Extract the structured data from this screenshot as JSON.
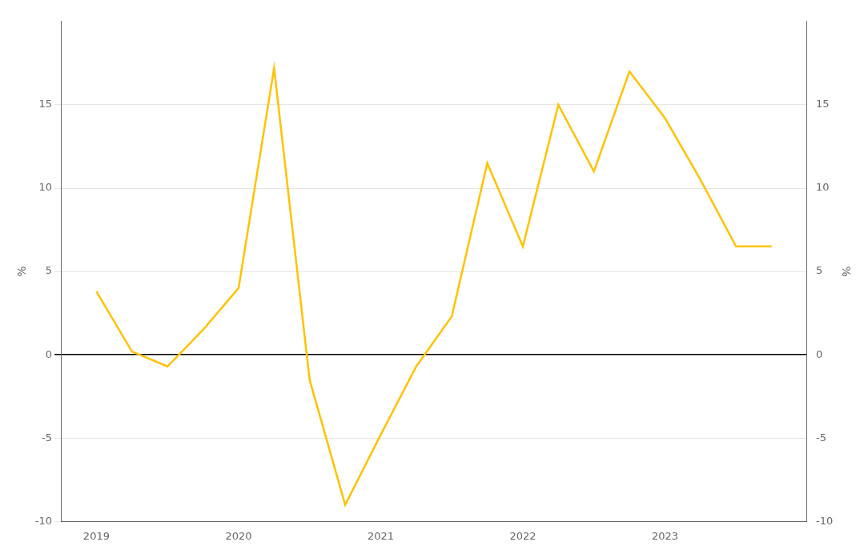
{
  "chart_data": {
    "type": "line",
    "x": [
      2019.0,
      2019.25,
      2019.5,
      2019.75,
      2020.0,
      2020.25,
      2020.5,
      2020.75,
      2021.0,
      2021.25,
      2021.5,
      2021.75,
      2022.0,
      2022.25,
      2022.5,
      2022.75,
      2023.0,
      2023.25,
      2023.5,
      2023.75
    ],
    "values": [
      3.8,
      0.2,
      -0.7,
      1.5,
      4.0,
      17.2,
      -1.5,
      -9.0,
      -4.8,
      -0.7,
      2.3,
      11.5,
      6.5,
      15.0,
      11.0,
      17.0,
      14.2,
      10.5,
      6.5,
      6.5
    ],
    "color": "#FFC200",
    "xlim": [
      2018.75,
      2024.0
    ],
    "xticks": [
      2019,
      2020,
      2021,
      2022,
      2023
    ],
    "ylim": [
      -10,
      20
    ],
    "yticks": [
      -10,
      -5,
      0,
      5,
      10,
      15
    ],
    "y2lim": [
      -10,
      20
    ],
    "y2ticks": [
      -10,
      -5,
      0,
      5,
      10,
      15
    ],
    "ylabel": "%",
    "y2label": "%",
    "grid": "y"
  }
}
